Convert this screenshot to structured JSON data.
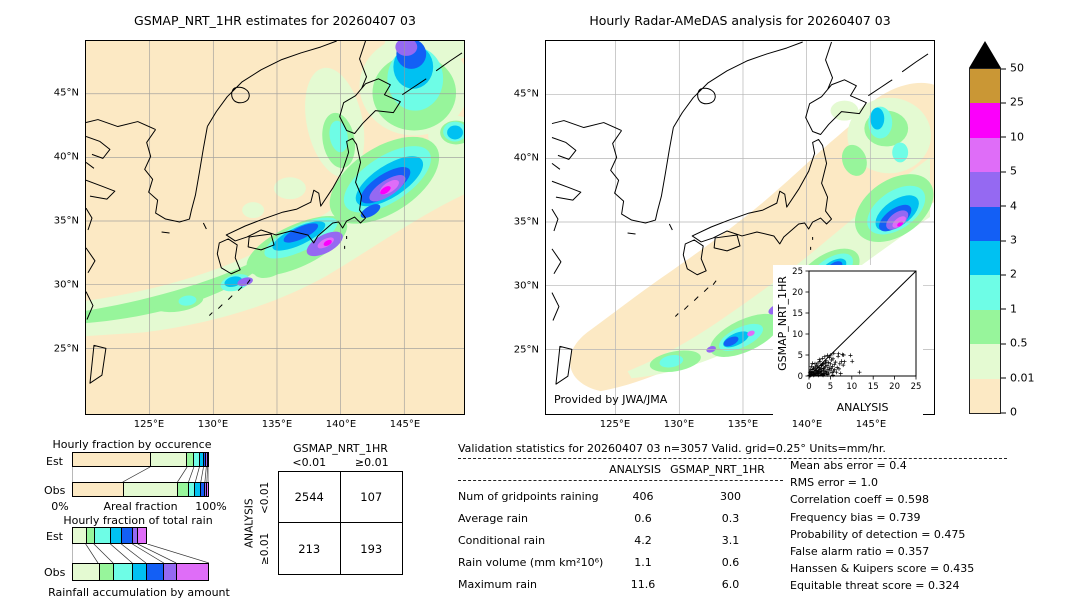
{
  "palette": {
    "p0": "#fce9c4",
    "p001": "#e4fad2",
    "p05": "#97f59b",
    "p1": "#6efde6",
    "p2": "#00c1f2",
    "p3": "#135ff5",
    "p4": "#9569f2",
    "p5": "#df6df8",
    "p10": "#fb00fb",
    "p25": "#ca9735",
    "p50": "#000000",
    "grid_left": "#999999",
    "grid_right": "#b5b5b5",
    "coast": "#000000"
  },
  "left_map": {
    "title": "GSMAP_NRT_1HR estimates for 20260407 03",
    "x_ticks": [
      "125°E",
      "130°E",
      "135°E",
      "140°E",
      "145°E"
    ],
    "y_ticks": [
      "45°N",
      "40°N",
      "35°N",
      "30°N",
      "25°N"
    ]
  },
  "right_map": {
    "title": "Hourly Radar-AMeDAS analysis for 20260407 03",
    "credit": "Provided by JWA/JMA",
    "x_ticks": [
      "125°E",
      "130°E",
      "135°E",
      "140°E",
      "145°E"
    ],
    "y_ticks": [
      "45°N",
      "40°N",
      "35°N",
      "30°N",
      "25°N"
    ]
  },
  "colorbar": {
    "labels_bottom_to_top": [
      "0",
      "0.01",
      "0.5",
      "1",
      "2",
      "3",
      "4",
      "5",
      "10",
      "25",
      "50"
    ],
    "segment_colors_bottom_to_top": [
      "p0",
      "p001",
      "p05",
      "p1",
      "p2",
      "p3",
      "p4",
      "p5",
      "p10",
      "p25"
    ],
    "overflow_color": "p50",
    "units": "mm/hr"
  },
  "occurrence": {
    "title": "Hourly fraction by occurence",
    "axis_left": "0%",
    "axis_center": "Areal fraction",
    "axis_right": "100%"
  },
  "totalrain": {
    "title": "Hourly fraction of total rain",
    "caption": "Rainfall accumulation by amount"
  },
  "chart_data": [
    {
      "type": "scatter",
      "xlabel": "ANALYSIS",
      "ylabel": "GSMAP_NRT_1HR",
      "xlim": [
        0,
        25
      ],
      "ylim": [
        0,
        25
      ],
      "ticks": [
        0,
        5,
        10,
        15,
        20,
        25
      ],
      "marker": "+",
      "diagonal": true,
      "points": [
        [
          0.1,
          0.2
        ],
        [
          0.2,
          0.1
        ],
        [
          0.3,
          0.5
        ],
        [
          0.4,
          0.2
        ],
        [
          0.5,
          1.1
        ],
        [
          0.6,
          0.3
        ],
        [
          0.7,
          0.8
        ],
        [
          0.8,
          0.4
        ],
        [
          0.9,
          1.5
        ],
        [
          1.0,
          0.6
        ],
        [
          1.1,
          0.2
        ],
        [
          1.2,
          1.8
        ],
        [
          1.3,
          0.9
        ],
        [
          1.4,
          0.5
        ],
        [
          1.5,
          2.2
        ],
        [
          1.6,
          1.2
        ],
        [
          1.7,
          0.4
        ],
        [
          1.8,
          2.6
        ],
        [
          1.9,
          1.0
        ],
        [
          2.0,
          0.7
        ],
        [
          2.1,
          3.1
        ],
        [
          2.2,
          1.4
        ],
        [
          2.3,
          0.8
        ],
        [
          2.4,
          2.0
        ],
        [
          2.5,
          1.1
        ],
        [
          2.6,
          3.4
        ],
        [
          2.7,
          0.5
        ],
        [
          2.8,
          1.7
        ],
        [
          2.9,
          2.4
        ],
        [
          3.0,
          1.0
        ],
        [
          3.1,
          4.2
        ],
        [
          3.2,
          2.8
        ],
        [
          3.3,
          1.3
        ],
        [
          3.4,
          0.6
        ],
        [
          3.5,
          3.0
        ],
        [
          3.6,
          1.9
        ],
        [
          3.7,
          4.6
        ],
        [
          3.8,
          2.2
        ],
        [
          3.9,
          1.1
        ],
        [
          4.0,
          3.6
        ],
        [
          4.1,
          0.9
        ],
        [
          4.2,
          2.5
        ],
        [
          4.3,
          4.9
        ],
        [
          4.4,
          1.6
        ],
        [
          4.5,
          3.2
        ],
        [
          4.6,
          0.7
        ],
        [
          4.7,
          2.1
        ],
        [
          4.8,
          4.4
        ],
        [
          4.9,
          1.4
        ],
        [
          5.0,
          2.9
        ],
        [
          5.1,
          5.0
        ],
        [
          5.2,
          1.8
        ],
        [
          5.3,
          3.8
        ],
        [
          5.4,
          0.8
        ],
        [
          5.5,
          2.3
        ],
        [
          5.6,
          4.1
        ],
        [
          5.7,
          1.2
        ],
        [
          5.8,
          5.4
        ],
        [
          5.9,
          2.7
        ],
        [
          6.0,
          1.5
        ],
        [
          6.2,
          3.3
        ],
        [
          6.4,
          0.9
        ],
        [
          6.6,
          2.0
        ],
        [
          6.8,
          4.7
        ],
        [
          7.0,
          1.7
        ],
        [
          7.2,
          2.9
        ],
        [
          7.4,
          0.6
        ],
        [
          7.6,
          3.5
        ],
        [
          7.8,
          5.1
        ],
        [
          8.0,
          2.6
        ],
        [
          0.2,
          0.9
        ],
        [
          0.4,
          1.6
        ],
        [
          0.6,
          2.3
        ],
        [
          0.8,
          3.0
        ],
        [
          1.0,
          1.9
        ],
        [
          1.2,
          0.3
        ],
        [
          1.4,
          2.9
        ],
        [
          1.6,
          0.6
        ],
        [
          1.8,
          1.3
        ],
        [
          2.0,
          2.1
        ],
        [
          2.2,
          0.2
        ],
        [
          2.4,
          3.9
        ],
        [
          2.6,
          1.6
        ],
        [
          2.8,
          0.4
        ],
        [
          3.0,
          2.6
        ],
        [
          3.2,
          0.3
        ],
        [
          3.4,
          1.8
        ],
        [
          3.6,
          0.5
        ],
        [
          3.8,
          3.1
        ],
        [
          4.0,
          0.4
        ],
        [
          8.3,
          3.4
        ],
        [
          9.7,
          4.9
        ],
        [
          10.1,
          3.5
        ],
        [
          11.8,
          0.9
        ],
        [
          8.1,
          5.0
        ],
        [
          6.9,
          5.3
        ],
        [
          5.6,
          0.2
        ],
        [
          4.4,
          0.3
        ],
        [
          3.3,
          0.2
        ],
        [
          2.1,
          0.5
        ]
      ]
    },
    {
      "type": "bar",
      "subtype": "stacked-horizontal-100pct",
      "title": "Hourly fraction by occurence",
      "categories": [
        "Est",
        "Obs"
      ],
      "bins_mm_hr": [
        "0-0.01",
        "0.01-0.5",
        "0.5-1",
        "1-2",
        "2-3",
        "3-4",
        "4-5",
        "5-10",
        "10-25",
        "25-50"
      ],
      "series": [
        {
          "name": "Est",
          "values": [
            57,
            27,
            5,
            4,
            3,
            2,
            1,
            0,
            1,
            0
          ]
        },
        {
          "name": "Obs",
          "values": [
            37,
            40,
            8,
            5,
            4,
            3,
            1.5,
            1.5,
            0,
            0
          ]
        }
      ],
      "xlabel": "Areal fraction",
      "xlim": [
        "0%",
        "100%"
      ]
    },
    {
      "type": "bar",
      "subtype": "stacked-horizontal",
      "title": "Hourly fraction of total rain",
      "categories": [
        "Est",
        "Obs"
      ],
      "bins_mm_hr": [
        "0-0.01",
        "0.01-0.5",
        "0.5-1",
        "1-2",
        "2-3",
        "3-4",
        "4-5",
        "5-10",
        "10-25",
        "25-50"
      ],
      "series": [
        {
          "name": "Est",
          "values": [
            0,
            10,
            6,
            12,
            8,
            8,
            4,
            7,
            0,
            0
          ]
        },
        {
          "name": "Obs",
          "values": [
            0,
            19,
            11,
            14,
            10,
            13,
            9,
            24,
            0,
            0
          ]
        }
      ],
      "caption": "Rainfall accumulation by amount"
    },
    {
      "type": "table",
      "title": "Contingency table (number of gridpoints)",
      "col_group": "GSMAP_NRT_1HR",
      "row_group": "ANALYSIS",
      "columns": [
        "",
        "<0.01",
        "≥0.01"
      ],
      "rows": [
        [
          "<0.01",
          "2544",
          "107"
        ],
        [
          "≥0.01",
          "213",
          "193"
        ]
      ]
    },
    {
      "type": "table",
      "title": "Validation statistics for 20260407 03  n=3057 Valid. grid=0.25° Units=mm/hr.",
      "columns": [
        "",
        "ANALYSIS",
        "GSMAP_NRT_1HR"
      ],
      "rows": [
        [
          "Num of gridpoints raining",
          "406",
          "300"
        ],
        [
          "Average rain",
          "0.6",
          "0.3"
        ],
        [
          "Conditional rain",
          "4.2",
          "3.1"
        ],
        [
          "Rain volume (mm km²10⁶)",
          "1.1",
          "0.6"
        ],
        [
          "Maximum rain",
          "11.6",
          "6.0"
        ]
      ]
    },
    {
      "type": "table",
      "title": "Validation scores",
      "rows": [
        [
          "Mean abs error",
          "0.4"
        ],
        [
          "RMS error",
          "1.0"
        ],
        [
          "Correlation coeff",
          "0.598"
        ],
        [
          "Frequency bias",
          "0.739"
        ],
        [
          "Probability of detection",
          "0.475"
        ],
        [
          "False alarm ratio",
          "0.357"
        ],
        [
          "Hanssen & Kuipers score",
          "0.435"
        ],
        [
          "Equitable threat score",
          "0.324"
        ]
      ]
    },
    {
      "type": "colorbar",
      "title": "Rain rate scale (mm/hr)",
      "levels": [
        0,
        0.01,
        0.5,
        1,
        2,
        3,
        4,
        5,
        10,
        25,
        50
      ],
      "overflow": ">50"
    }
  ]
}
